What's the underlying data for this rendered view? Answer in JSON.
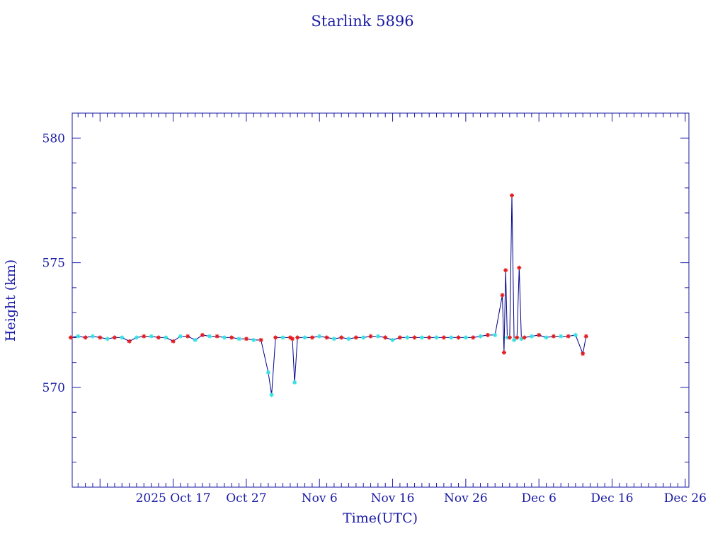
{
  "chart_data": {
    "type": "line",
    "title": "Starlink 5896",
    "xlabel": "Time(UTC)",
    "ylabel": "Height (km)",
    "x_range_days_from_oct7": [
      -3.8,
      80.5
    ],
    "ylim": [
      566,
      581
    ],
    "x_tick_labels": [
      "2025 Oct 17",
      "Oct 27",
      "Nov  6",
      "Nov 16",
      "Nov 26",
      "Dec  6",
      "Dec 16",
      "Dec 26"
    ],
    "x_tick_dates": [
      "2025-10-07",
      "2025-10-17",
      "2025-10-27",
      "2025-11-06",
      "2025-11-16",
      "2025-11-26",
      "2025-12-06",
      "2025-12-16",
      "2025-12-26"
    ],
    "y_major_ticks": [
      570,
      575,
      580
    ],
    "y_tick_labels": [
      "570",
      "575",
      "580"
    ],
    "colors": {
      "axis": "#1a1aa6",
      "line": "#00008b",
      "marker_primary": "#e31a1c",
      "marker_secondary": "#33e0e0"
    },
    "series": [
      {
        "x": [
          "2025-10-03",
          "2025-10-04",
          "2025-10-05",
          "2025-10-06",
          "2025-10-07",
          "2025-10-08",
          "2025-10-09",
          "2025-10-10",
          "2025-10-11",
          "2025-10-12",
          "2025-10-13",
          "2025-10-14",
          "2025-10-15",
          "2025-10-16",
          "2025-10-17",
          "2025-10-18",
          "2025-10-19",
          "2025-10-20",
          "2025-10-21",
          "2025-10-22",
          "2025-10-23",
          "2025-10-24",
          "2025-10-25",
          "2025-10-26",
          "2025-10-27",
          "2025-10-28",
          "2025-10-29",
          "2025-10-30",
          "2025-10-30",
          "2025-10-31",
          "2025-11-01",
          "2025-11-02",
          "2025-11-02",
          "2025-11-02",
          "2025-11-03",
          "2025-11-04",
          "2025-11-05",
          "2025-11-06",
          "2025-11-07",
          "2025-11-08",
          "2025-11-09",
          "2025-11-10",
          "2025-11-11",
          "2025-11-12",
          "2025-11-13",
          "2025-11-14",
          "2025-11-15",
          "2025-11-16",
          "2025-11-17",
          "2025-11-18",
          "2025-11-19",
          "2025-11-20",
          "2025-11-21",
          "2025-11-22",
          "2025-11-23",
          "2025-11-24",
          "2025-11-25",
          "2025-11-26",
          "2025-11-27",
          "2025-11-28",
          "2025-11-29",
          "2025-11-30",
          "2025-12-01",
          "2025-12-01",
          "2025-12-01",
          "2025-12-01",
          "2025-12-02",
          "2025-12-02",
          "2025-12-02",
          "2025-12-03",
          "2025-12-03",
          "2025-12-03",
          "2025-12-04",
          "2025-12-05",
          "2025-12-06",
          "2025-12-07",
          "2025-12-08",
          "2025-12-09",
          "2025-12-10",
          "2025-12-11",
          "2025-12-12",
          "2025-12-12"
        ],
        "y": [
          572.0,
          572.05,
          572.0,
          572.05,
          572.0,
          571.95,
          572.0,
          572.0,
          571.85,
          572.0,
          572.05,
          572.05,
          572.0,
          572.0,
          571.85,
          572.05,
          572.05,
          571.9,
          572.1,
          572.05,
          572.05,
          572.0,
          572.0,
          571.95,
          571.95,
          571.9,
          571.9,
          570.6,
          569.7,
          572.0,
          572.0,
          572.0,
          571.95,
          570.2,
          572.0,
          572.0,
          572.0,
          572.05,
          572.0,
          571.95,
          572.0,
          571.95,
          572.0,
          572.0,
          572.05,
          572.05,
          572.0,
          571.9,
          572.0,
          572.0,
          572.0,
          572.0,
          572.0,
          572.0,
          572.0,
          572.0,
          572.0,
          572.0,
          572.0,
          572.05,
          572.1,
          572.1,
          573.7,
          571.4,
          574.7,
          572.0,
          572.0,
          577.7,
          571.9,
          572.0,
          574.8,
          571.95,
          572.0,
          572.05,
          572.1,
          572.0,
          572.05,
          572.05,
          572.05,
          572.1,
          571.35,
          572.05
        ],
        "marker": [
          "r",
          "c",
          "r",
          "c",
          "r",
          "c",
          "r",
          "c",
          "r",
          "c",
          "r",
          "c",
          "r",
          "c",
          "r",
          "c",
          "r",
          "c",
          "r",
          "c",
          "r",
          "c",
          "r",
          "c",
          "r",
          "c",
          "r",
          "c",
          "c",
          "r",
          "c",
          "r",
          "r",
          "c",
          "r",
          "c",
          "r",
          "c",
          "r",
          "c",
          "r",
          "c",
          "r",
          "c",
          "r",
          "c",
          "r",
          "c",
          "r",
          "c",
          "r",
          "c",
          "r",
          "c",
          "r",
          "c",
          "r",
          "c",
          "r",
          "c",
          "r",
          "c",
          "r",
          "r",
          "r",
          "c",
          "r",
          "r",
          "c",
          "r",
          "r",
          "c",
          "r",
          "c",
          "r",
          "c",
          "r",
          "c",
          "r",
          "c",
          "r",
          "r"
        ]
      }
    ]
  }
}
